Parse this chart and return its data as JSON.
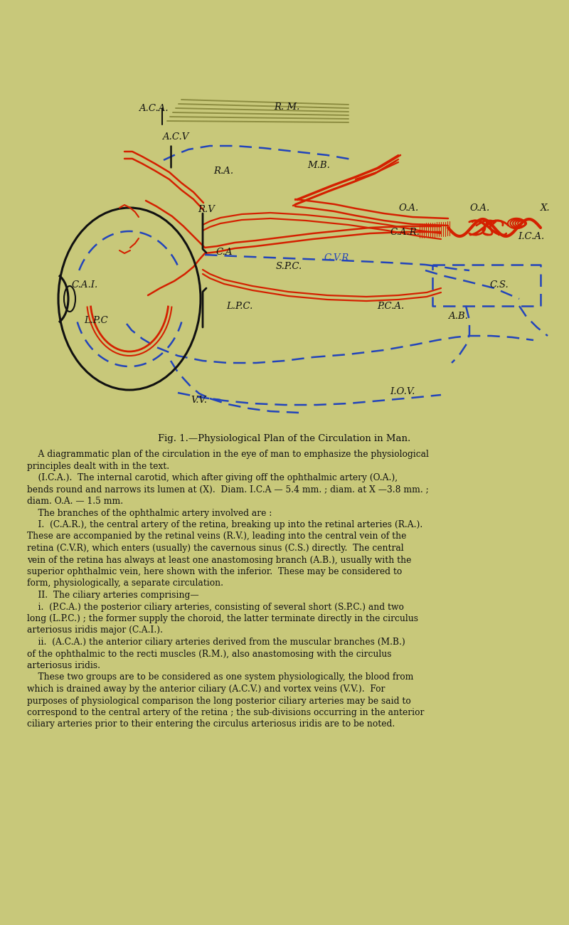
{
  "bg_color": "#c8c87a",
  "title": "Fig. 1.—Physiological Plan of the Circulation in Man.",
  "title_fontsize": 9.5,
  "body_text": [
    "    A diagrammatic plan of the circulation in the eye of man to emphasize the physiological",
    "principles dealt with in the text.",
    "    (I.C.A.).  The internal carotid, which after giving off the ophthalmic artery (O.A.),",
    "bends round and narrows its lumen at (X).  Diam. I.C.A — 5.4 mm. ; diam. at X —3.8 mm. ;",
    "diam. O.A. — 1.5 mm.",
    "    The branches of the ophthalmic artery involved are :",
    "    I.  (C.A.R.), the central artery of the retina, breaking up into the retinal arteries (R.A.).",
    "These are accompanied by the retinal veins (R.V.), leading into the central vein of the",
    "retina (C.V.R), which enters (usually) the cavernous sinus (C.S.) directly.  The central",
    "vein of the retina has always at least one anastomosing branch (A.B.), usually with the",
    "superior ophthalmic vein, here shown with the inferior.  These may be considered to",
    "form, physiologically, a separate circulation.",
    "    II.  The ciliary arteries comprising—",
    "    i.  (P.C.A.) the posterior ciliary arteries, consisting of several short (S.P.C.) and two",
    "long (L.P.C.) ; the former supply the choroid, the latter terminate directly in the circulus",
    "arteriosus iridis major (C.A.I.).",
    "    ii.  (A.C.A.) the anterior ciliary arteries derived from the muscular branches (M.B.)",
    "of the ophthalmic to the recti muscles (R.M.), also anastomosing with the circulus",
    "arteriosus iridis.",
    "    These two groups are to be considered as one system physiologically, the blood from",
    "which is drained away by the anterior ciliary (A.C.V.) and vortex veins (V.V.).  For",
    "purposes of physiological comparison the long posterior ciliary arteries may be said to",
    "correspond to the central artery of the retina ; the sub-divisions occurring in the anterior",
    "ciliary arteries prior to their entering the circulus arteriosus iridis are to be noted."
  ],
  "red_color": "#d42000",
  "blue_dash_color": "#2244bb",
  "black_color": "#111111",
  "olive_color": "#8c8c40"
}
